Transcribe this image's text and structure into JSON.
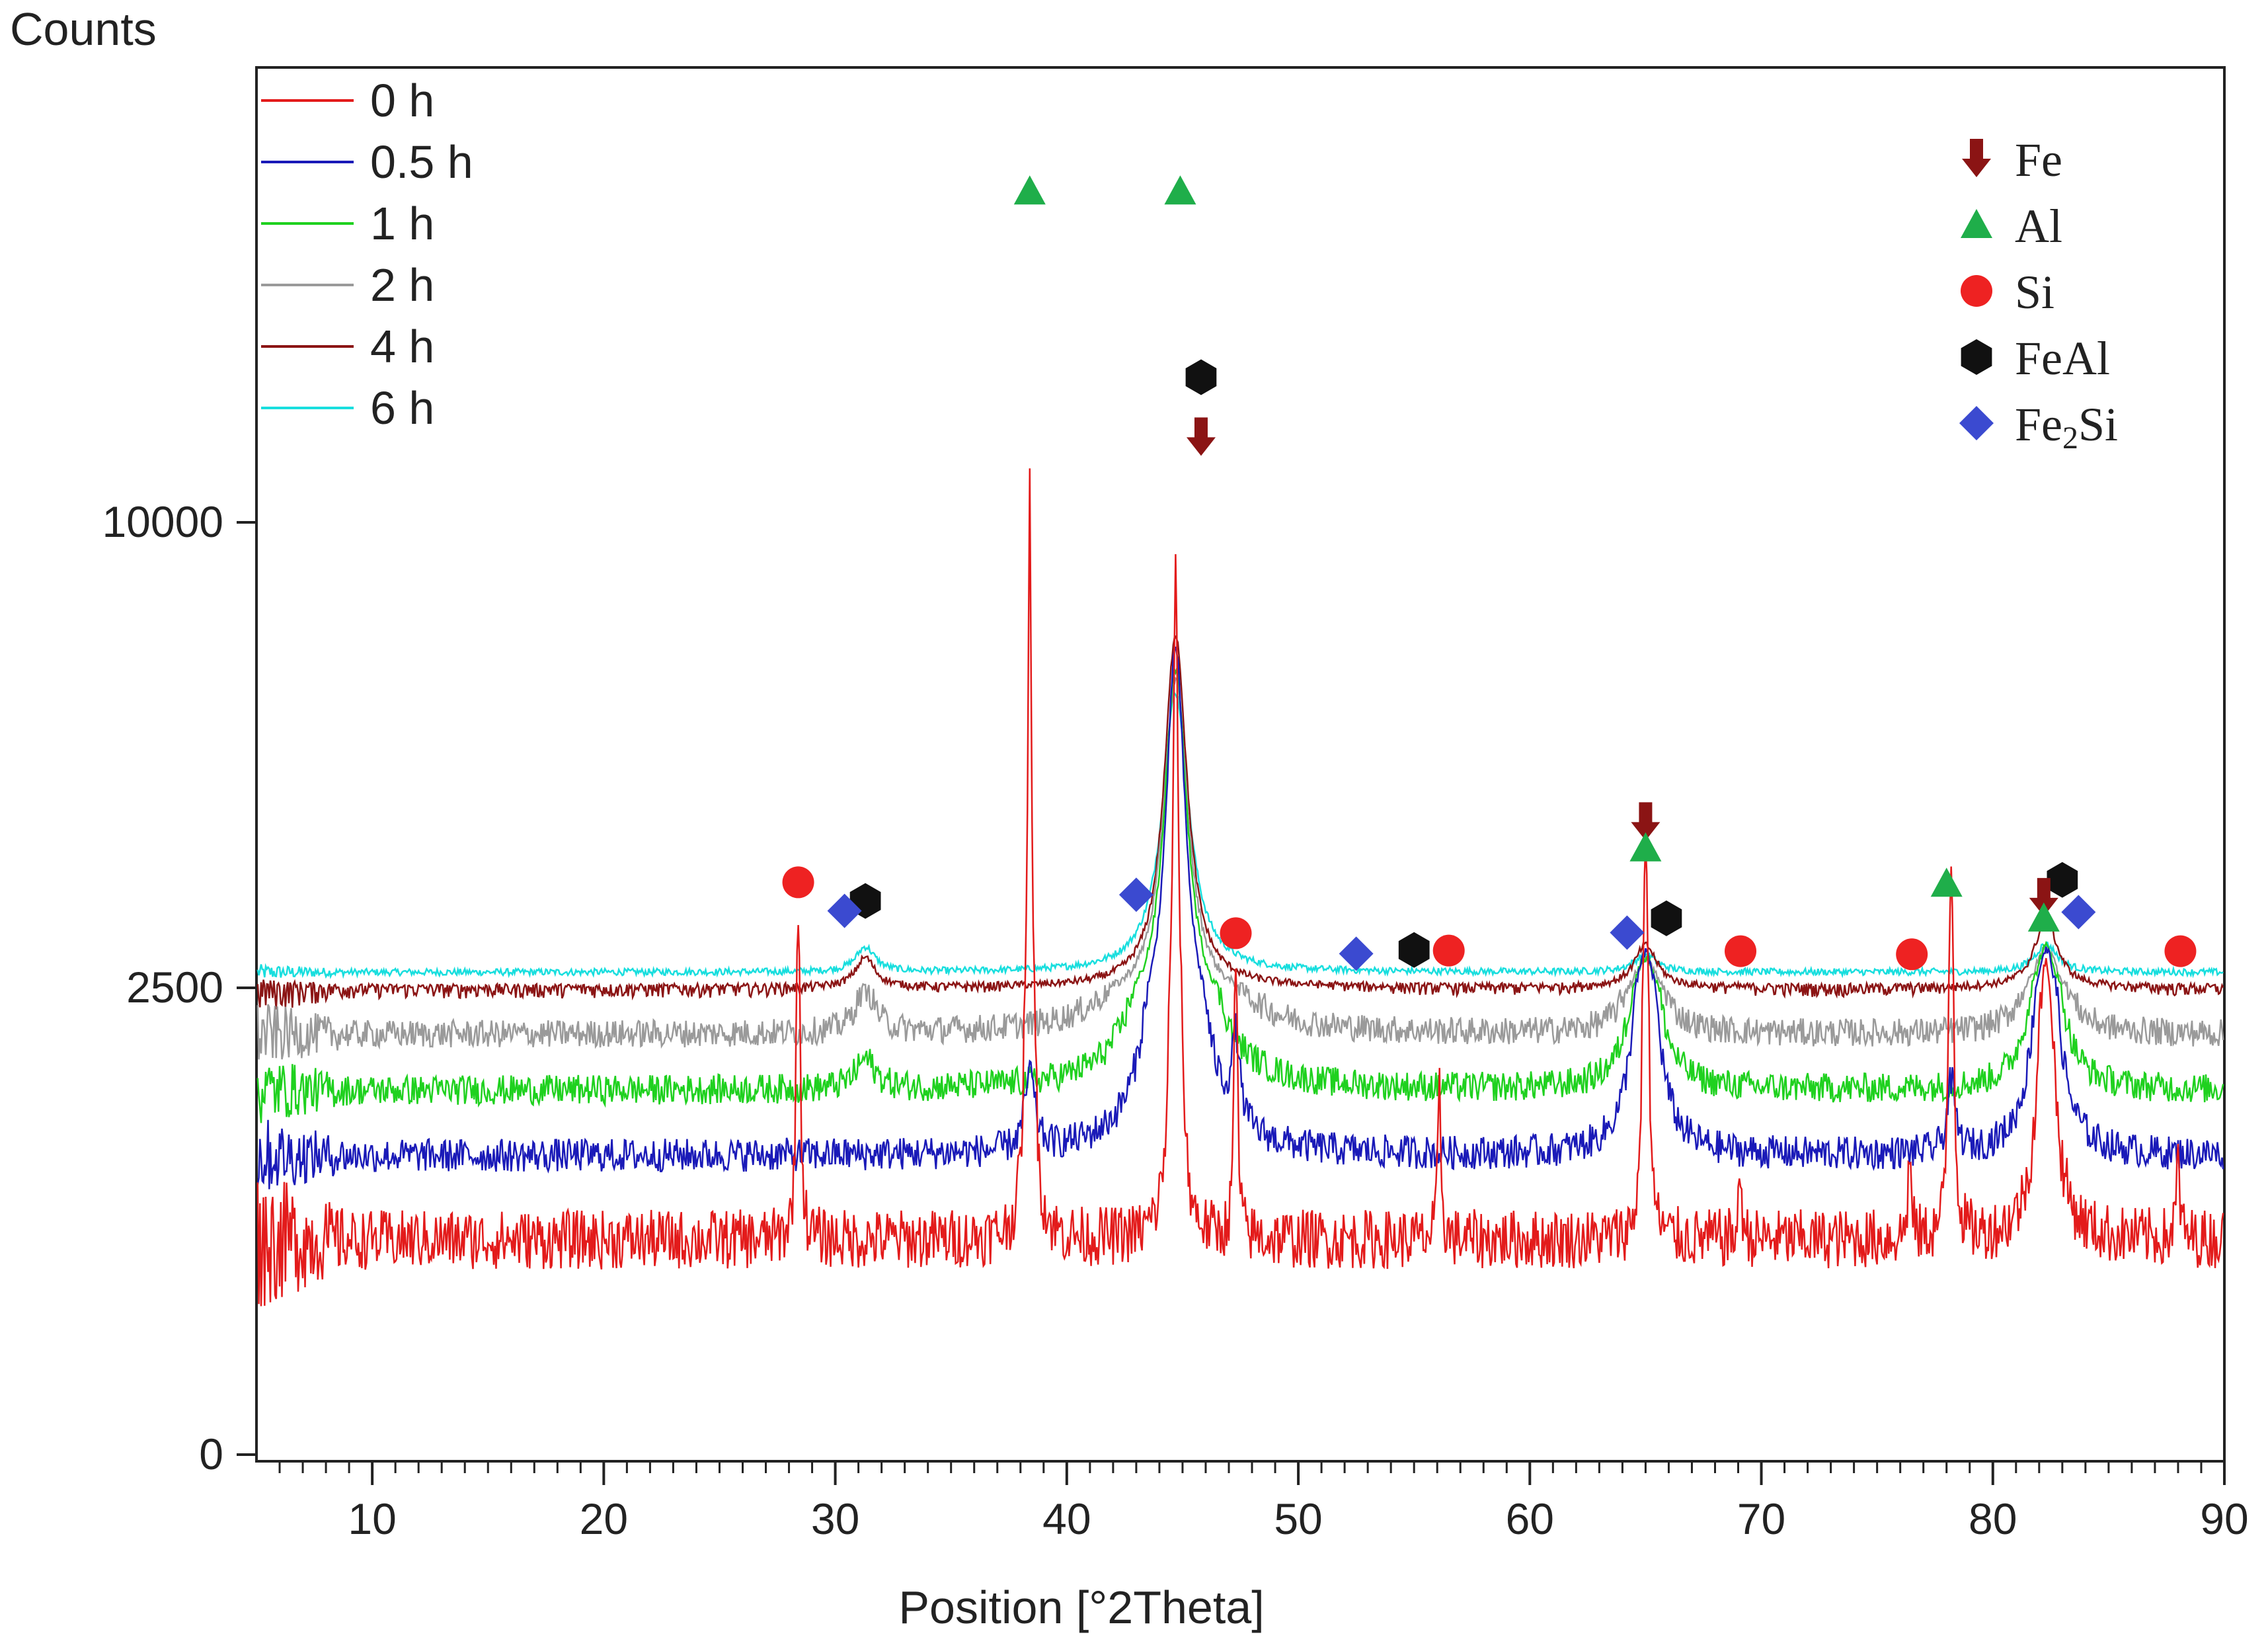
{
  "chart_data": {
    "type": "line",
    "ylabel": "Counts",
    "xlabel": "Position [°2Theta]",
    "xlim": [
      5,
      90
    ],
    "ylim_note": "non-linear axis: 0, 2500, 10000",
    "x_ticks": [
      10,
      20,
      30,
      40,
      50,
      60,
      70,
      80,
      90
    ],
    "y_ticks": [
      {
        "value": 0,
        "label": "0"
      },
      {
        "value": 2500,
        "label": "2500"
      },
      {
        "value": 10000,
        "label": "10000"
      }
    ],
    "series": [
      {
        "name": "0 h",
        "color": "#e31b1b",
        "baseline": 1150,
        "noise": 160,
        "peaks": [
          [
            28.4,
            2500,
            0.08
          ],
          [
            38.4,
            9200,
            0.09
          ],
          [
            44.7,
            8200,
            0.12
          ],
          [
            47.3,
            1700,
            0.08
          ],
          [
            56.1,
            800,
            0.08
          ],
          [
            65.0,
            3800,
            0.1
          ],
          [
            69.1,
            350,
            0.08
          ],
          [
            76.4,
            450,
            0.08
          ],
          [
            78.2,
            3400,
            0.09
          ],
          [
            82.3,
            1700,
            0.4
          ],
          [
            88.0,
            450,
            0.08
          ]
        ]
      },
      {
        "name": "0.5 h",
        "color": "#1a1ab8",
        "baseline": 1600,
        "noise": 90,
        "peaks": [
          [
            38.4,
            420,
            0.25
          ],
          [
            44.7,
            6400,
            0.5
          ],
          [
            47.3,
            450,
            0.2
          ],
          [
            65.0,
            1450,
            0.55
          ],
          [
            78.2,
            380,
            0.2
          ],
          [
            82.3,
            1500,
            0.55
          ]
        ]
      },
      {
        "name": "1 h",
        "color": "#1fd11f",
        "baseline": 1950,
        "noise": 80,
        "peaks": [
          [
            31.3,
            160,
            0.5
          ],
          [
            44.7,
            5700,
            0.6
          ],
          [
            65.0,
            1050,
            0.6
          ],
          [
            82.3,
            1200,
            0.6
          ]
        ]
      },
      {
        "name": "2 h",
        "color": "#9a9a9a",
        "baseline": 2250,
        "noise": 75,
        "peaks": [
          [
            31.3,
            240,
            0.5
          ],
          [
            44.7,
            5200,
            0.65
          ],
          [
            65.0,
            700,
            0.6
          ],
          [
            82.3,
            900,
            0.6
          ]
        ]
      },
      {
        "name": "4 h",
        "color": "#8b1414",
        "baseline": 2500,
        "noise": 60,
        "peaks": [
          [
            31.3,
            480,
            0.5
          ],
          [
            44.7,
            5700,
            0.6
          ],
          [
            65.0,
            680,
            0.6
          ],
          [
            82.3,
            1100,
            0.6
          ]
        ]
      },
      {
        "name": "6 h",
        "color": "#18dede",
        "baseline": 2750,
        "noise": 55,
        "peaks": [
          [
            31.3,
            400,
            0.5
          ],
          [
            44.7,
            4500,
            0.7
          ],
          [
            65.0,
            280,
            0.6
          ],
          [
            82.3,
            450,
            0.6
          ]
        ]
      }
    ],
    "phase_legend": [
      {
        "label": "Fe",
        "marker": "arrow",
        "color": "#8b1414"
      },
      {
        "label": "Al",
        "marker": "triangle",
        "color": "#1fae4a"
      },
      {
        "label": "Si",
        "marker": "circle",
        "color": "#ee2222"
      },
      {
        "label": "FeAl",
        "marker": "hexagon",
        "color": "#111111"
      },
      {
        "label": "Fe",
        "label_sub": "2",
        "label_suffix": "Si",
        "marker": "diamond",
        "color": "#3b4ad0"
      }
    ],
    "markers": [
      {
        "phase": "Al",
        "x": 38.4,
        "y": 12920
      },
      {
        "phase": "Al",
        "x": 44.9,
        "y": 12920
      },
      {
        "phase": "FeAl",
        "x": 45.8,
        "y": 11280
      },
      {
        "phase": "Fe",
        "x": 45.8,
        "y": 10750
      },
      {
        "phase": "Si",
        "x": 28.4,
        "y": 4200
      },
      {
        "phase": "FeAl",
        "x": 31.3,
        "y": 3900
      },
      {
        "phase": "Fe2Si",
        "x": 30.4,
        "y": 3740
      },
      {
        "phase": "Fe2Si",
        "x": 43.0,
        "y": 4000
      },
      {
        "phase": "Si",
        "x": 47.3,
        "y": 3380
      },
      {
        "phase": "Fe2Si",
        "x": 52.5,
        "y": 3050
      },
      {
        "phase": "FeAl",
        "x": 55.0,
        "y": 3110
      },
      {
        "phase": "Si",
        "x": 56.5,
        "y": 3100
      },
      {
        "phase": "Fe2Si",
        "x": 64.2,
        "y": 3390
      },
      {
        "phase": "FeAl",
        "x": 65.9,
        "y": 3620
      },
      {
        "phase": "Fe",
        "x": 65.0,
        "y": 5170
      },
      {
        "phase": "Al",
        "x": 65.0,
        "y": 4750
      },
      {
        "phase": "Si",
        "x": 69.1,
        "y": 3090
      },
      {
        "phase": "Si",
        "x": 76.5,
        "y": 3040
      },
      {
        "phase": "Al",
        "x": 78.0,
        "y": 4180
      },
      {
        "phase": "FeAl",
        "x": 83.0,
        "y": 4240
      },
      {
        "phase": "Fe",
        "x": 82.2,
        "y": 3950
      },
      {
        "phase": "Al",
        "x": 82.2,
        "y": 3620
      },
      {
        "phase": "Fe2Si",
        "x": 83.7,
        "y": 3720
      },
      {
        "phase": "Si",
        "x": 88.1,
        "y": 3090
      }
    ]
  },
  "colors": {
    "axis": "#222222",
    "background": "#ffffff"
  }
}
